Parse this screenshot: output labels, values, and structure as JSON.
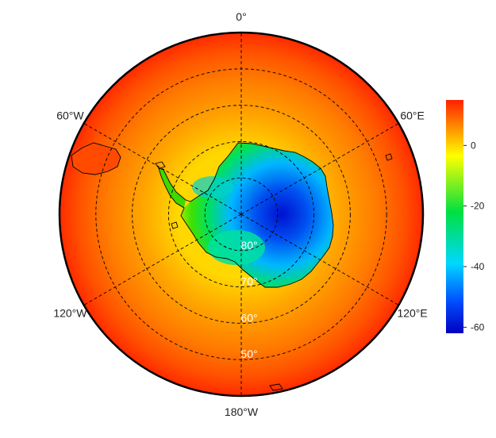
{
  "map": {
    "projection": "south-polar-stereographic",
    "field_range": [
      -62,
      15
    ],
    "longitude_labels": [
      {
        "text": "0°",
        "lon": 0
      },
      {
        "text": "60°E",
        "lon": 60
      },
      {
        "text": "120°E",
        "lon": 120
      },
      {
        "text": "180°W",
        "lon": 180
      },
      {
        "text": "120°W",
        "lon": -120
      },
      {
        "text": "60°W",
        "lon": -60
      }
    ],
    "latitude_labels": [
      {
        "text": "80°",
        "lat": -80
      },
      {
        "text": "70°",
        "lat": -70
      },
      {
        "text": "60°",
        "lat": -60
      },
      {
        "text": "50°",
        "lat": -50
      }
    ],
    "colors": {
      "graticule": "#000000",
      "coastline": "#000000",
      "border": "#000000"
    }
  },
  "colorbar": {
    "min": -62,
    "max": 15,
    "ticks": [
      {
        "value": 0,
        "label": "0"
      },
      {
        "value": -20,
        "label": "-20"
      },
      {
        "value": -40,
        "label": "-40"
      },
      {
        "value": -60,
        "label": "-60"
      }
    ],
    "palette": [
      "#0000c0",
      "#0050ff",
      "#00d8ff",
      "#00e040",
      "#ffff00",
      "#ff8000",
      "#ff2000"
    ]
  }
}
